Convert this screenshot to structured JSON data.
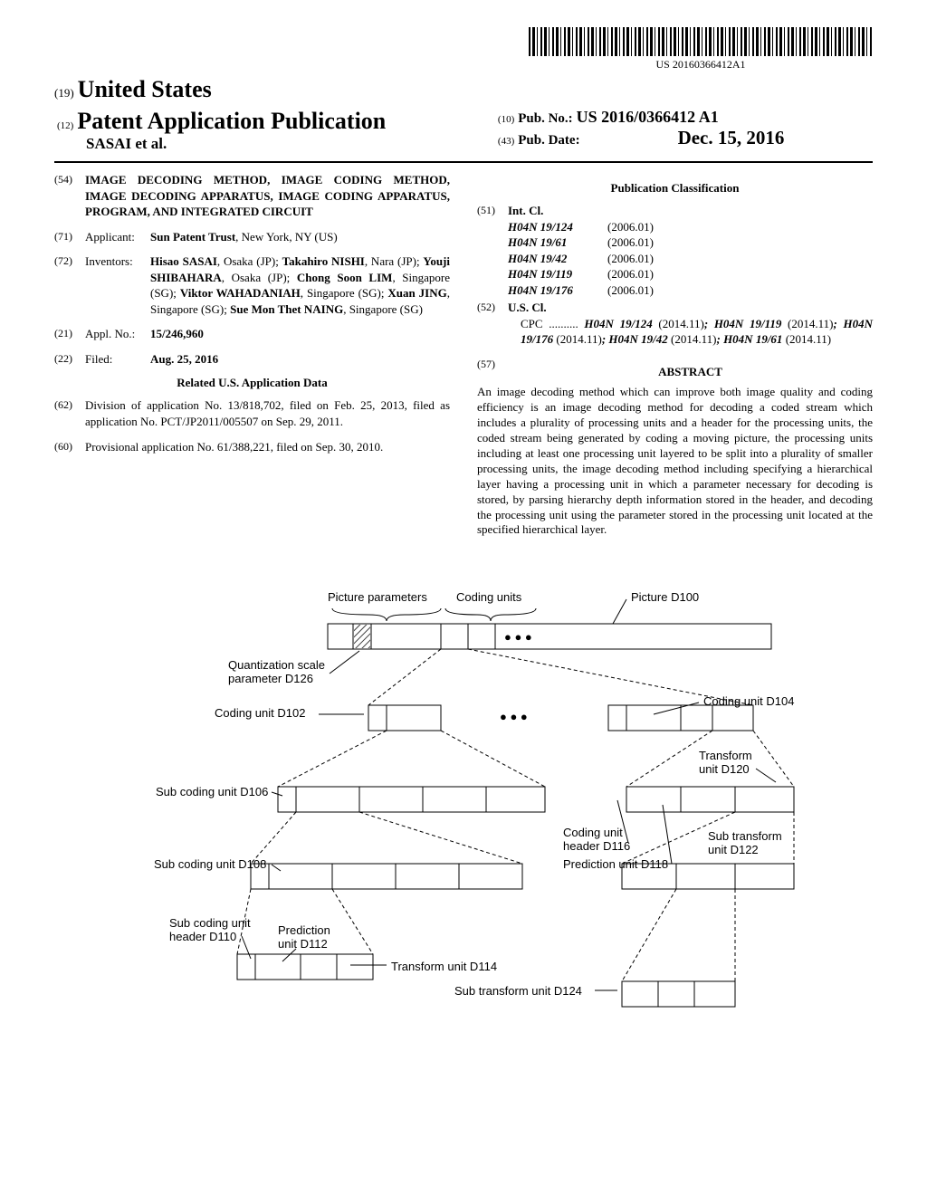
{
  "barcode_text": "US 20160366412A1",
  "header": {
    "country_code": "(19)",
    "country": "United States",
    "doc_code": "(12)",
    "doc_type": "Patent Application Publication",
    "authors": "SASAI et al.",
    "pub_no_code": "(10)",
    "pub_no_label": "Pub. No.:",
    "pub_no": "US 2016/0366412 A1",
    "pub_date_code": "(43)",
    "pub_date_label": "Pub. Date:",
    "pub_date": "Dec. 15, 2016"
  },
  "left_col": {
    "title_code": "(54)",
    "title": "IMAGE DECODING METHOD, IMAGE CODING METHOD, IMAGE DECODING APPARATUS, IMAGE CODING APPARATUS, PROGRAM, AND INTEGRATED CIRCUIT",
    "applicant_code": "(71)",
    "applicant_label": "Applicant:",
    "applicant": "Sun Patent Trust",
    "applicant_loc": ", New York, NY (US)",
    "inventors_code": "(72)",
    "inventors_label": "Inventors:",
    "inventors": [
      {
        "name": "Hisao SASAI",
        "loc": ", Osaka (JP); "
      },
      {
        "name": "Takahiro NISHI",
        "loc": ", Nara (JP); "
      },
      {
        "name": "Youji SHIBAHARA",
        "loc": ", Osaka (JP); "
      },
      {
        "name": "Chong Soon LIM",
        "loc": ", Singapore (SG); "
      },
      {
        "name": "Viktor WAHADANIAH",
        "loc": ", Singapore (SG); "
      },
      {
        "name": "Xuan JING",
        "loc": ", Singapore (SG); "
      },
      {
        "name": "Sue Mon Thet NAING",
        "loc": ", Singapore (SG)"
      }
    ],
    "appl_no_code": "(21)",
    "appl_no_label": "Appl. No.:",
    "appl_no": "15/246,960",
    "filed_code": "(22)",
    "filed_label": "Filed:",
    "filed": "Aug. 25, 2016",
    "related_h": "Related U.S. Application Data",
    "division_code": "(62)",
    "division": "Division of application No. 13/818,702, filed on Feb. 25, 2013, filed as application No. PCT/JP2011/005507 on Sep. 29, 2011.",
    "provisional_code": "(60)",
    "provisional": "Provisional application No. 61/388,221, filed on Sep. 30, 2010."
  },
  "right_col": {
    "classification_h": "Publication Classification",
    "int_cl_code": "(51)",
    "int_cl_label": "Int. Cl.",
    "int_cl": [
      {
        "code": "H04N 19/124",
        "ver": "(2006.01)"
      },
      {
        "code": "H04N 19/61",
        "ver": "(2006.01)"
      },
      {
        "code": "H04N 19/42",
        "ver": "(2006.01)"
      },
      {
        "code": "H04N 19/119",
        "ver": "(2006.01)"
      },
      {
        "code": "H04N 19/176",
        "ver": "(2006.01)"
      }
    ],
    "us_cl_code": "(52)",
    "us_cl_label": "U.S. Cl.",
    "cpc_prefix": "CPC ..........",
    "cpc": " H04N 19/124 (2014.11); H04N 19/119 (2014.11); H04N 19/176 (2014.11); H04N 19/42 (2014.11); H04N 19/61 (2014.11)",
    "abstract_code": "(57)",
    "abstract_h": "ABSTRACT",
    "abstract": "An image decoding method which can improve both image quality and coding efficiency is an image decoding method for decoding a coded stream which includes a plurality of processing units and a header for the processing units, the coded stream being generated by coding a moving picture, the processing units including at least one processing unit layered to be split into a plurality of smaller processing units, the image decoding method including specifying a hierarchical layer having a processing unit in which a parameter necessary for decoding is stored, by parsing hierarchy depth information stored in the header, and decoding the processing unit using the parameter stored in the processing unit located at the specified hierarchical layer."
  },
  "diagram": {
    "labels": {
      "picture_params": "Picture parameters",
      "coding_units": "Coding units",
      "picture_d100": "Picture D100",
      "quant_scale": "Quantization scale",
      "param_d126": "parameter D126",
      "coding_unit_d102": "Coding unit D102",
      "coding_unit_d104": "Coding unit D104",
      "transform": "Transform",
      "unit_d120": "unit D120",
      "sub_coding_d106": "Sub coding unit D106",
      "coding_unit_header": "Coding unit",
      "header_d116": "header D116",
      "sub_transform": "Sub transform",
      "unit_d122": "unit D122",
      "sub_coding_d108": "Sub coding unit D108",
      "prediction_d118": "Prediction unit D118",
      "sub_coding_unit": "Sub coding unit",
      "header_d110": "header D110",
      "prediction": "Prediction",
      "unit_d112": "unit D112",
      "transform_d114": "Transform unit D114",
      "sub_transform_d124": "Sub transform unit D124"
    },
    "style": {
      "stroke": "#000000",
      "stroke_width": 1.2,
      "fill": "none",
      "font_family": "Arial, sans-serif",
      "font_size": 13,
      "hatch_fill": "#888",
      "dash": "4,3"
    }
  }
}
